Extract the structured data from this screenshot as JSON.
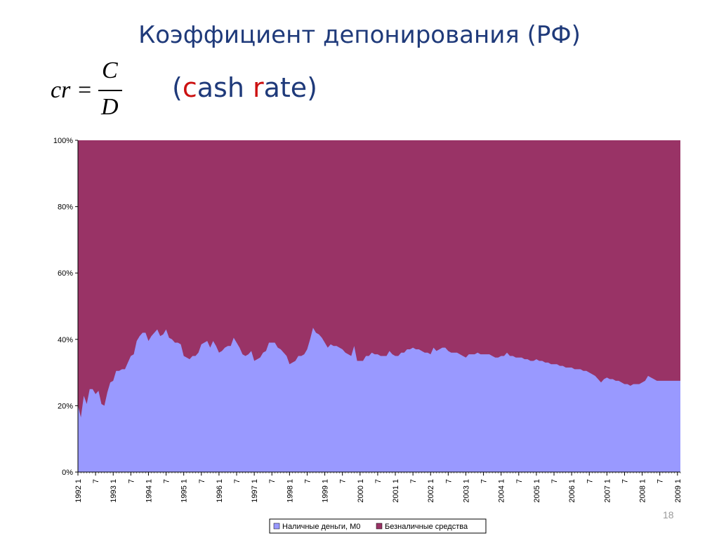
{
  "slide": {
    "title": "Коэффициент депонирования (РФ)",
    "formula": {
      "lhs": "cr =",
      "numerator": "C",
      "denominator": "D"
    },
    "subtitle": {
      "open": "(",
      "hl1": "c",
      "mid1": "ash ",
      "hl2": "r",
      "mid2": "ate)"
    },
    "page_number": "18"
  },
  "colors": {
    "series_m0": "#9999ff",
    "series_noncash": "#993366",
    "title": "#1f3a7a",
    "highlight": "#cc1111"
  },
  "chart_data": {
    "type": "area",
    "stacked": "percent",
    "title": "",
    "xlabel": "",
    "ylabel": "",
    "ylim": [
      0,
      100
    ],
    "y_ticks": [
      "0%",
      "20%",
      "40%",
      "60%",
      "80%",
      "100%"
    ],
    "x_ticks": [
      {
        "i": 0,
        "label": "1992 1"
      },
      {
        "i": 6,
        "label": "7"
      },
      {
        "i": 12,
        "label": "1993 1"
      },
      {
        "i": 18,
        "label": "7"
      },
      {
        "i": 24,
        "label": "1994 1"
      },
      {
        "i": 30,
        "label": "7"
      },
      {
        "i": 36,
        "label": "1995 1"
      },
      {
        "i": 42,
        "label": "7"
      },
      {
        "i": 48,
        "label": "1996 1"
      },
      {
        "i": 54,
        "label": "7"
      },
      {
        "i": 60,
        "label": "1997 1"
      },
      {
        "i": 66,
        "label": "7"
      },
      {
        "i": 72,
        "label": "1998 1"
      },
      {
        "i": 78,
        "label": "7"
      },
      {
        "i": 84,
        "label": "1999 1"
      },
      {
        "i": 90,
        "label": "7"
      },
      {
        "i": 96,
        "label": "2000 1"
      },
      {
        "i": 102,
        "label": "7"
      },
      {
        "i": 108,
        "label": "2001 1"
      },
      {
        "i": 114,
        "label": "7"
      },
      {
        "i": 120,
        "label": "2002 1"
      },
      {
        "i": 126,
        "label": "7"
      },
      {
        "i": 132,
        "label": "2003 1"
      },
      {
        "i": 138,
        "label": "7"
      },
      {
        "i": 144,
        "label": "2004 1"
      },
      {
        "i": 150,
        "label": "7"
      },
      {
        "i": 156,
        "label": "2005 1"
      },
      {
        "i": 162,
        "label": "7"
      },
      {
        "i": 168,
        "label": "2006 1"
      },
      {
        "i": 174,
        "label": "7"
      },
      {
        "i": 180,
        "label": "2007 1"
      },
      {
        "i": 186,
        "label": "7"
      },
      {
        "i": 192,
        "label": "2008 1"
      },
      {
        "i": 198,
        "label": "7"
      },
      {
        "i": 204,
        "label": "2009 1"
      }
    ],
    "n_points": 206,
    "series": [
      {
        "name": "Наличные деньги, М0",
        "anchors": [
          [
            0,
            20
          ],
          [
            1,
            16.5
          ],
          [
            2,
            23
          ],
          [
            3,
            20.5
          ],
          [
            4,
            25
          ],
          [
            5,
            25
          ],
          [
            6,
            23.5
          ],
          [
            7,
            24.5
          ],
          [
            8,
            20.5
          ],
          [
            9,
            20
          ],
          [
            10,
            24
          ],
          [
            11,
            27
          ],
          [
            12,
            27.5
          ],
          [
            13,
            30.5
          ],
          [
            14,
            30.5
          ],
          [
            15,
            31
          ],
          [
            16,
            31
          ],
          [
            17,
            33
          ],
          [
            18,
            35
          ],
          [
            19,
            35.5
          ],
          [
            20,
            39.5
          ],
          [
            21,
            41
          ],
          [
            22,
            42
          ],
          [
            23,
            42
          ],
          [
            24,
            39.5
          ],
          [
            25,
            41
          ],
          [
            26,
            42
          ],
          [
            27,
            43
          ],
          [
            28,
            41
          ],
          [
            29,
            41.5
          ],
          [
            30,
            43
          ],
          [
            31,
            40.5
          ],
          [
            32,
            40
          ],
          [
            33,
            39
          ],
          [
            34,
            39
          ],
          [
            35,
            38.5
          ],
          [
            36,
            35
          ],
          [
            37,
            34.5
          ],
          [
            38,
            34
          ],
          [
            39,
            35
          ],
          [
            40,
            35
          ],
          [
            41,
            36
          ],
          [
            42,
            38.5
          ],
          [
            43,
            39
          ],
          [
            44,
            39.5
          ],
          [
            45,
            37.5
          ],
          [
            46,
            39.5
          ],
          [
            47,
            38
          ],
          [
            48,
            36
          ],
          [
            49,
            36.5
          ],
          [
            50,
            37.5
          ],
          [
            51,
            38
          ],
          [
            52,
            38
          ],
          [
            53,
            40.5
          ],
          [
            54,
            39
          ],
          [
            55,
            37.5
          ],
          [
            56,
            35.5
          ],
          [
            57,
            35
          ],
          [
            58,
            35.5
          ],
          [
            59,
            36.5
          ],
          [
            60,
            33.5
          ],
          [
            61,
            34
          ],
          [
            62,
            34.5
          ],
          [
            63,
            36
          ],
          [
            64,
            36.5
          ],
          [
            65,
            39
          ],
          [
            66,
            39
          ],
          [
            67,
            39
          ],
          [
            68,
            37.5
          ],
          [
            69,
            37
          ],
          [
            70,
            36
          ],
          [
            71,
            35
          ],
          [
            72,
            32.5
          ],
          [
            73,
            33
          ],
          [
            74,
            33.5
          ],
          [
            75,
            35
          ],
          [
            76,
            35
          ],
          [
            77,
            35.5
          ],
          [
            78,
            37
          ],
          [
            79,
            40
          ],
          [
            80,
            43.5
          ],
          [
            81,
            42
          ],
          [
            82,
            41.5
          ],
          [
            83,
            40.5
          ],
          [
            84,
            39
          ],
          [
            85,
            37.5
          ],
          [
            86,
            38.5
          ],
          [
            87,
            38
          ],
          [
            88,
            38
          ],
          [
            89,
            37.5
          ],
          [
            90,
            37
          ],
          [
            91,
            36
          ],
          [
            92,
            35.5
          ],
          [
            93,
            35
          ],
          [
            94,
            38
          ],
          [
            95,
            33.5
          ],
          [
            96,
            33.5
          ],
          [
            97,
            33.5
          ],
          [
            98,
            35
          ],
          [
            99,
            35
          ],
          [
            100,
            36
          ],
          [
            101,
            35.5
          ],
          [
            102,
            35.5
          ],
          [
            103,
            35
          ],
          [
            104,
            35
          ],
          [
            105,
            35
          ],
          [
            106,
            36.5
          ],
          [
            107,
            35.5
          ],
          [
            108,
            35
          ],
          [
            109,
            35
          ],
          [
            110,
            36
          ],
          [
            111,
            36
          ],
          [
            112,
            37
          ],
          [
            113,
            37
          ],
          [
            114,
            37.5
          ],
          [
            115,
            37
          ],
          [
            116,
            37
          ],
          [
            117,
            36.5
          ],
          [
            118,
            36
          ],
          [
            119,
            36
          ],
          [
            120,
            35.5
          ],
          [
            121,
            37.5
          ],
          [
            122,
            36.5
          ],
          [
            123,
            37
          ],
          [
            124,
            37.5
          ],
          [
            125,
            37.5
          ],
          [
            126,
            36.5
          ],
          [
            127,
            36
          ],
          [
            128,
            36
          ],
          [
            129,
            36
          ],
          [
            130,
            35.5
          ],
          [
            131,
            35
          ],
          [
            132,
            34.5
          ],
          [
            133,
            35.5
          ],
          [
            134,
            35.5
          ],
          [
            135,
            35.5
          ],
          [
            136,
            36
          ],
          [
            137,
            35.5
          ],
          [
            138,
            35.5
          ],
          [
            139,
            35.5
          ],
          [
            140,
            35.5
          ],
          [
            141,
            35
          ],
          [
            142,
            34.5
          ],
          [
            143,
            34.5
          ],
          [
            144,
            35
          ],
          [
            145,
            35
          ],
          [
            146,
            36
          ],
          [
            147,
            35
          ],
          [
            148,
            35
          ],
          [
            149,
            34.5
          ],
          [
            150,
            34.5
          ],
          [
            151,
            34.5
          ],
          [
            152,
            34
          ],
          [
            153,
            34
          ],
          [
            154,
            33.5
          ],
          [
            155,
            33.5
          ],
          [
            156,
            34
          ],
          [
            157,
            33.5
          ],
          [
            158,
            33.5
          ],
          [
            159,
            33
          ],
          [
            160,
            33
          ],
          [
            161,
            32.5
          ],
          [
            162,
            32.5
          ],
          [
            163,
            32.5
          ],
          [
            164,
            32
          ],
          [
            165,
            32
          ],
          [
            166,
            31.5
          ],
          [
            167,
            31.5
          ],
          [
            168,
            31.5
          ],
          [
            169,
            31
          ],
          [
            170,
            31
          ],
          [
            171,
            31
          ],
          [
            172,
            30.5
          ],
          [
            173,
            30.5
          ],
          [
            174,
            30
          ],
          [
            175,
            29.5
          ],
          [
            176,
            29
          ],
          [
            177,
            28
          ],
          [
            178,
            27
          ],
          [
            179,
            28
          ],
          [
            180,
            28.5
          ],
          [
            181,
            28
          ],
          [
            182,
            28
          ],
          [
            183,
            27.5
          ],
          [
            184,
            27.5
          ],
          [
            185,
            27
          ],
          [
            186,
            26.5
          ],
          [
            187,
            26.5
          ],
          [
            188,
            26
          ],
          [
            189,
            26.5
          ],
          [
            190,
            26.5
          ],
          [
            191,
            26.5
          ],
          [
            192,
            27
          ],
          [
            193,
            27.5
          ],
          [
            194,
            29
          ],
          [
            195,
            28.5
          ],
          [
            196,
            28
          ],
          [
            197,
            27.5
          ],
          [
            198,
            27.5
          ],
          [
            205,
            27.5
          ]
        ]
      },
      {
        "name": "Безналичные средства",
        "complement_to": 100
      }
    ],
    "legend": {
      "position": "bottom-center",
      "entries": [
        "Наличные деньги, М0",
        "Безналичные средства"
      ]
    }
  }
}
